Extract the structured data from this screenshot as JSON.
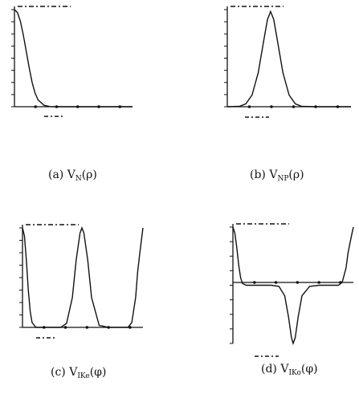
{
  "captions": [
    {
      "prefix": "(a) V",
      "sub": "N",
      "arg": "(ρ)"
    },
    {
      "prefix": "(b) V",
      "sub": "NP",
      "arg": "(ρ)"
    },
    {
      "prefix": "(c) V",
      "sub": "IKe",
      "arg": "(φ)"
    },
    {
      "prefix": "(d) V",
      "sub": "IKo",
      "arg": "(φ)"
    }
  ],
  "chart_data": [
    {
      "type": "line",
      "title": "(a) VN(ρ)",
      "x": [
        0,
        0.25,
        0.5,
        0.75,
        1,
        1.25,
        1.5,
        1.75,
        2,
        2.5,
        3,
        3.5,
        4,
        4.5,
        5,
        6,
        7,
        8,
        9,
        10
      ],
      "series": [
        {
          "values": [
            1.0,
            0.97,
            0.88,
            0.74,
            0.57,
            0.4,
            0.25,
            0.14,
            0.07,
            0.015,
            0.002,
            0,
            0,
            0,
            0,
            0,
            0,
            0,
            0,
            0
          ]
        }
      ],
      "xlim": [
        0,
        10
      ],
      "ylim": [
        0,
        1
      ],
      "grid": false
    },
    {
      "type": "line",
      "title": "(b) VNP(ρ)",
      "x": [
        0,
        1,
        1.5,
        2,
        2.5,
        3,
        3.25,
        3.5,
        3.75,
        4,
        4.5,
        5,
        5.5,
        6,
        7,
        8,
        9,
        10
      ],
      "series": [
        {
          "values": [
            0,
            0.005,
            0.03,
            0.12,
            0.35,
            0.72,
            0.9,
            0.98,
            0.9,
            0.72,
            0.35,
            0.12,
            0.03,
            0.005,
            0,
            0,
            0,
            0
          ]
        }
      ],
      "xlim": [
        0,
        10
      ],
      "ylim": [
        0,
        1
      ],
      "grid": false
    },
    {
      "type": "line",
      "title": "(c) VIKe(φ)",
      "x": [
        0,
        0.1,
        0.2,
        0.3,
        0.4,
        0.5,
        0.7,
        1,
        1.5,
        2,
        2.3,
        2.6,
        2.8,
        3.0,
        3.1,
        3.2,
        3.4,
        3.6,
        4,
        4.5,
        5,
        5.5,
        5.7,
        5.9,
        6.0,
        6.1,
        6.2,
        6.28
      ],
      "series": [
        {
          "values": [
            1.0,
            0.92,
            0.68,
            0.38,
            0.16,
            0.05,
            0,
            0,
            0,
            0,
            0.04,
            0.3,
            0.68,
            0.95,
            1.0,
            0.95,
            0.68,
            0.3,
            0.02,
            0,
            0,
            0,
            0.05,
            0.3,
            0.55,
            0.72,
            0.88,
            1.0
          ]
        }
      ],
      "xlim": [
        0,
        6.28
      ],
      "ylim": [
        0,
        1
      ],
      "grid": false
    },
    {
      "type": "line",
      "title": "(d) VIKo(φ)",
      "x": [
        0,
        0.1,
        0.2,
        0.3,
        0.4,
        0.5,
        0.7,
        1,
        1.5,
        2,
        2.4,
        2.7,
        2.9,
        3.05,
        3.14,
        3.25,
        3.4,
        3.6,
        4,
        4.5,
        5,
        5.5,
        5.7,
        5.9,
        6.0,
        6.1,
        6.2,
        6.28
      ],
      "series": [
        {
          "values": [
            1.0,
            0.9,
            0.65,
            0.35,
            0.13,
            0.03,
            0,
            0,
            0,
            0,
            -0.02,
            -0.18,
            -0.55,
            -0.9,
            -1.0,
            -0.9,
            -0.55,
            -0.18,
            -0.02,
            0,
            0,
            0,
            0.05,
            0.3,
            0.55,
            0.72,
            0.88,
            1.0
          ]
        }
      ],
      "xlim": [
        0,
        6.28
      ],
      "ylim": [
        -1,
        1
      ],
      "grid": false
    }
  ]
}
